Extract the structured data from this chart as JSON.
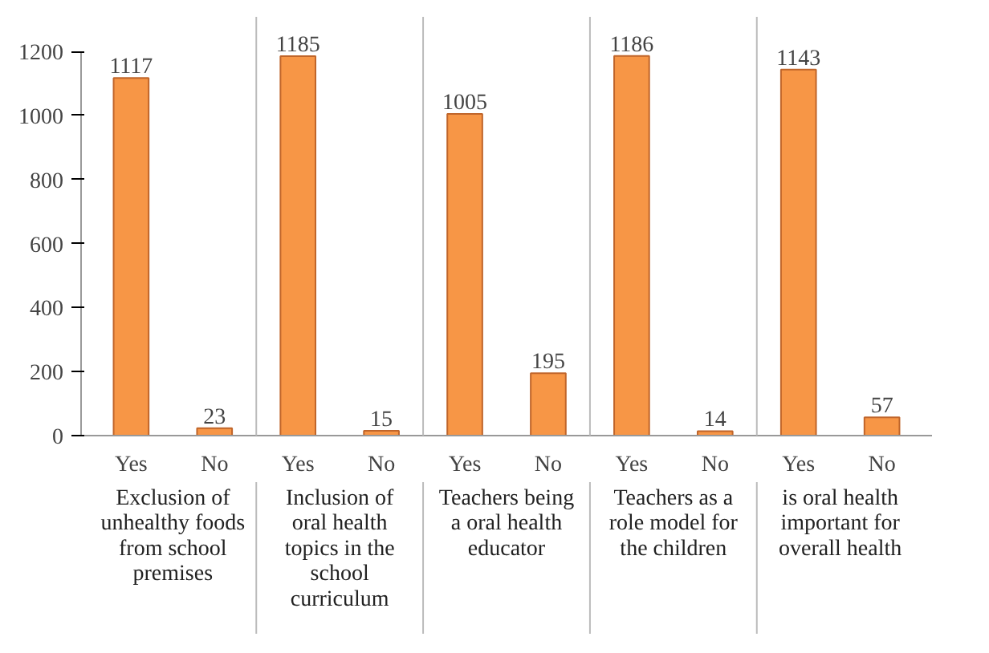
{
  "chart_data": {
    "type": "bar",
    "categories": [
      "Yes",
      "No",
      "Yes",
      "No",
      "Yes",
      "No",
      "Yes",
      "No",
      "Yes",
      "No"
    ],
    "values": [
      1117,
      23,
      1185,
      15,
      1005,
      195,
      1186,
      14,
      1143,
      57
    ],
    "color": "#f79646",
    "ylim": [
      0,
      1200
    ],
    "yticks": [
      0,
      200,
      400,
      600,
      800,
      1000,
      1200
    ],
    "data_labels": true,
    "grid": false,
    "annotations": [
      "Exclusion of unhealthy foods from school premises",
      "Inclusion of oral health topics in the school curriculum",
      "Teachers being a oral health educator",
      "Teachers as a role model for the children",
      "is oral health important for overall health"
    ]
  }
}
